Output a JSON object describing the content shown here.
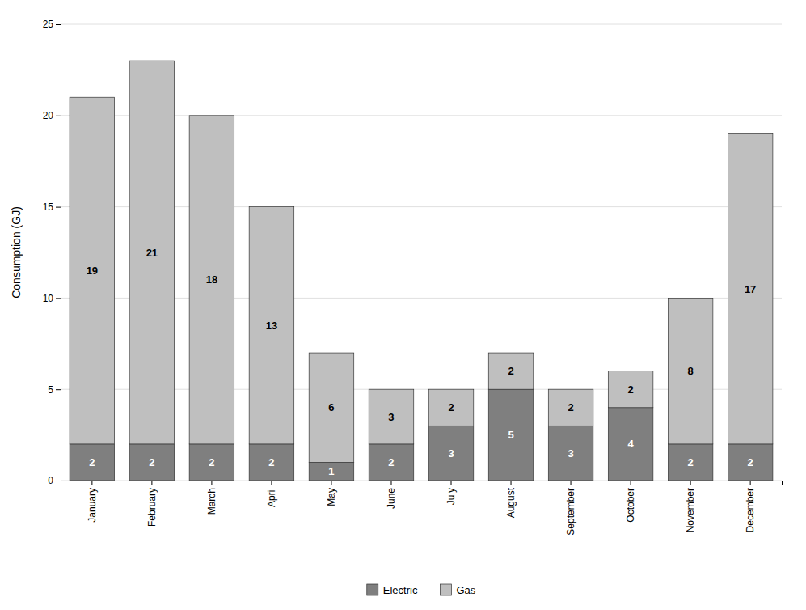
{
  "chart_data": {
    "type": "bar",
    "stacked": true,
    "categories": [
      "January",
      "February",
      "March",
      "April",
      "May",
      "June",
      "July",
      "August",
      "September",
      "October",
      "November",
      "December"
    ],
    "series": [
      {
        "name": "Electric",
        "color": "#7f7f7f",
        "values": [
          2,
          2,
          2,
          2,
          1,
          2,
          3,
          5,
          3,
          4,
          2,
          2
        ]
      },
      {
        "name": "Gas",
        "color": "#bfbfbf",
        "values": [
          19,
          21,
          18,
          13,
          6,
          3,
          2,
          2,
          2,
          2,
          8,
          17
        ]
      }
    ],
    "y_label": "Consumption (GJ)",
    "ylim": [
      0,
      25
    ],
    "yticks": [
      0,
      5,
      10,
      15,
      20,
      25
    ],
    "grid": true,
    "data_labels": true,
    "legend": "bottom"
  }
}
